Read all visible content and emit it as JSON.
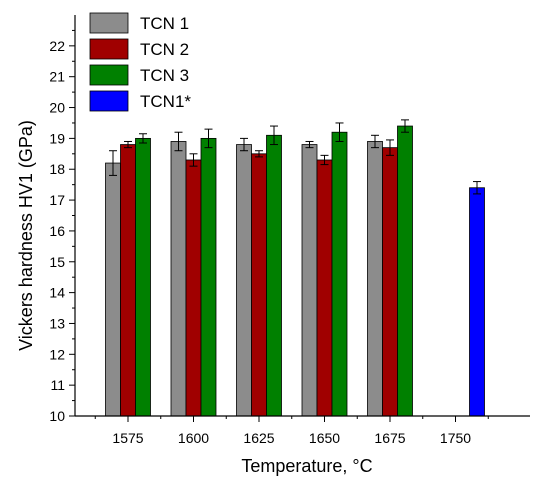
{
  "chart_data": {
    "type": "bar",
    "title": "",
    "xlabel": "Temperature, °C",
    "ylabel": "Vickers hardness HV1 (GPa)",
    "categories": [
      "1575",
      "1600",
      "1625",
      "1650",
      "1675",
      "1750"
    ],
    "ylim": [
      10,
      23
    ],
    "yticks": [
      10,
      11,
      12,
      13,
      14,
      15,
      16,
      17,
      18,
      19,
      20,
      21,
      22
    ],
    "grid": false,
    "legend_position": "top-left",
    "series": [
      {
        "name": "TCN 1",
        "color": "#8c8c8c",
        "values": [
          18.2,
          18.9,
          18.8,
          18.8,
          18.9,
          null
        ],
        "errors": [
          0.4,
          0.3,
          0.2,
          0.1,
          0.2,
          null
        ]
      },
      {
        "name": "TCN 2",
        "color": "#a00000",
        "values": [
          18.8,
          18.3,
          18.5,
          18.3,
          18.7,
          null
        ],
        "errors": [
          0.1,
          0.2,
          0.1,
          0.15,
          0.25,
          null
        ]
      },
      {
        "name": "TCN 3",
        "color": "#008000",
        "values": [
          19.0,
          19.0,
          19.1,
          19.2,
          19.4,
          null
        ],
        "errors": [
          0.15,
          0.3,
          0.3,
          0.3,
          0.2,
          null
        ]
      },
      {
        "name": "TCN1*",
        "color": "#0000ff",
        "values": [
          null,
          null,
          null,
          null,
          null,
          17.4
        ],
        "errors": [
          null,
          null,
          null,
          null,
          null,
          0.2
        ]
      }
    ]
  }
}
